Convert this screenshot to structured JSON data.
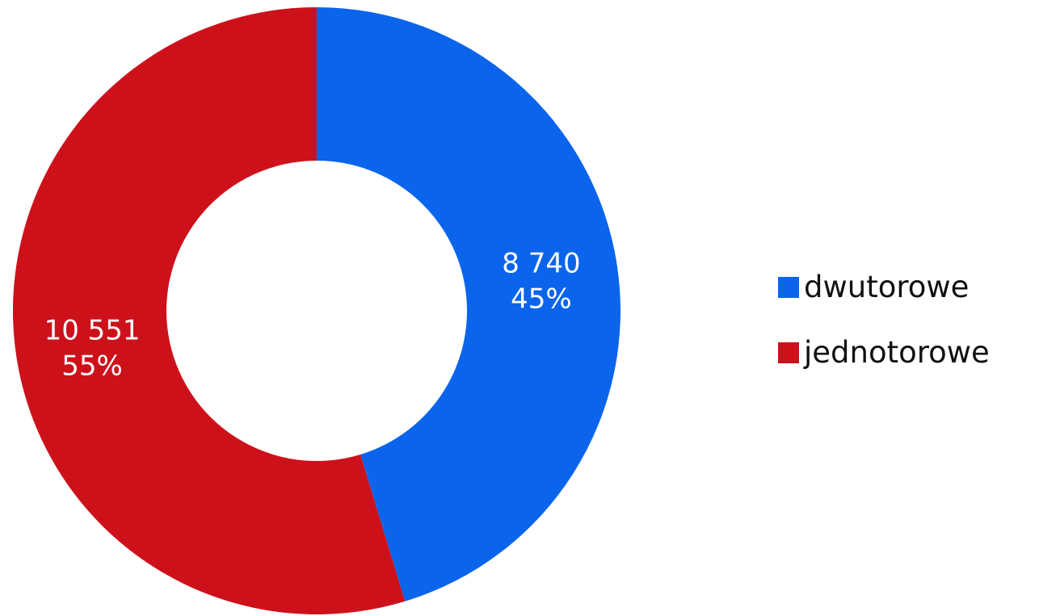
{
  "chart_data": {
    "type": "pie",
    "variant": "donut",
    "slices": [
      {
        "name": "dwutorowe",
        "value": 8740,
        "value_label": "8 740",
        "percent": 45,
        "percent_label": "45%",
        "color": "#0a64ec"
      },
      {
        "name": "jednotorowe",
        "value": 10551,
        "value_label": "10 551",
        "percent": 55,
        "percent_label": "55%",
        "color": "#cd111b"
      }
    ],
    "legend": {
      "position": "right",
      "entries": [
        "dwutorowe",
        "jednotorowe"
      ]
    },
    "start_angle": "top",
    "direction": "clockwise"
  }
}
